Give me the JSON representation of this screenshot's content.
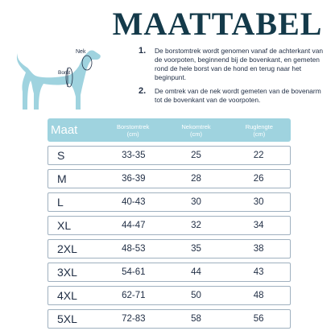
{
  "title": "MAATTABEL",
  "dog_labels": {
    "neck": "Nek",
    "chest": "Borst"
  },
  "instructions": [
    {
      "num": "1.",
      "text": "De borstomtrek wordt genomen vanaf de achterkant van de voorpoten, beginnend bij de bovenkant, en gemeten rond de hele borst van de hond en terug naar het beginpunt."
    },
    {
      "num": "2.",
      "text": "De omtrek van de nek wordt gemeten van de bovenarm tot de bovenkant van de voorpoten."
    }
  ],
  "table": {
    "headers": {
      "size": "Maat",
      "chest": "Borstomtrek\n(cm)",
      "neck": "Nekomtrek\n(cm)",
      "back": "Ruglengte\n(cm)"
    },
    "rows": [
      {
        "size": "S",
        "chest": "33-35",
        "neck": "25",
        "back": "22"
      },
      {
        "size": "M",
        "chest": "36-39",
        "neck": "28",
        "back": "26"
      },
      {
        "size": "L",
        "chest": "40-43",
        "neck": "30",
        "back": "30"
      },
      {
        "size": "XL",
        "chest": "44-47",
        "neck": "32",
        "back": "34"
      },
      {
        "size": "2XL",
        "chest": "48-53",
        "neck": "35",
        "back": "38"
      },
      {
        "size": "3XL",
        "chest": "54-61",
        "neck": "44",
        "back": "43"
      },
      {
        "size": "4XL",
        "chest": "62-71",
        "neck": "50",
        "back": "48"
      },
      {
        "size": "5XL",
        "chest": "72-83",
        "neck": "58",
        "back": "56"
      }
    ]
  },
  "colors": {
    "accent": "#9fd3df",
    "title": "#143a4a",
    "text": "#1f2d44"
  }
}
